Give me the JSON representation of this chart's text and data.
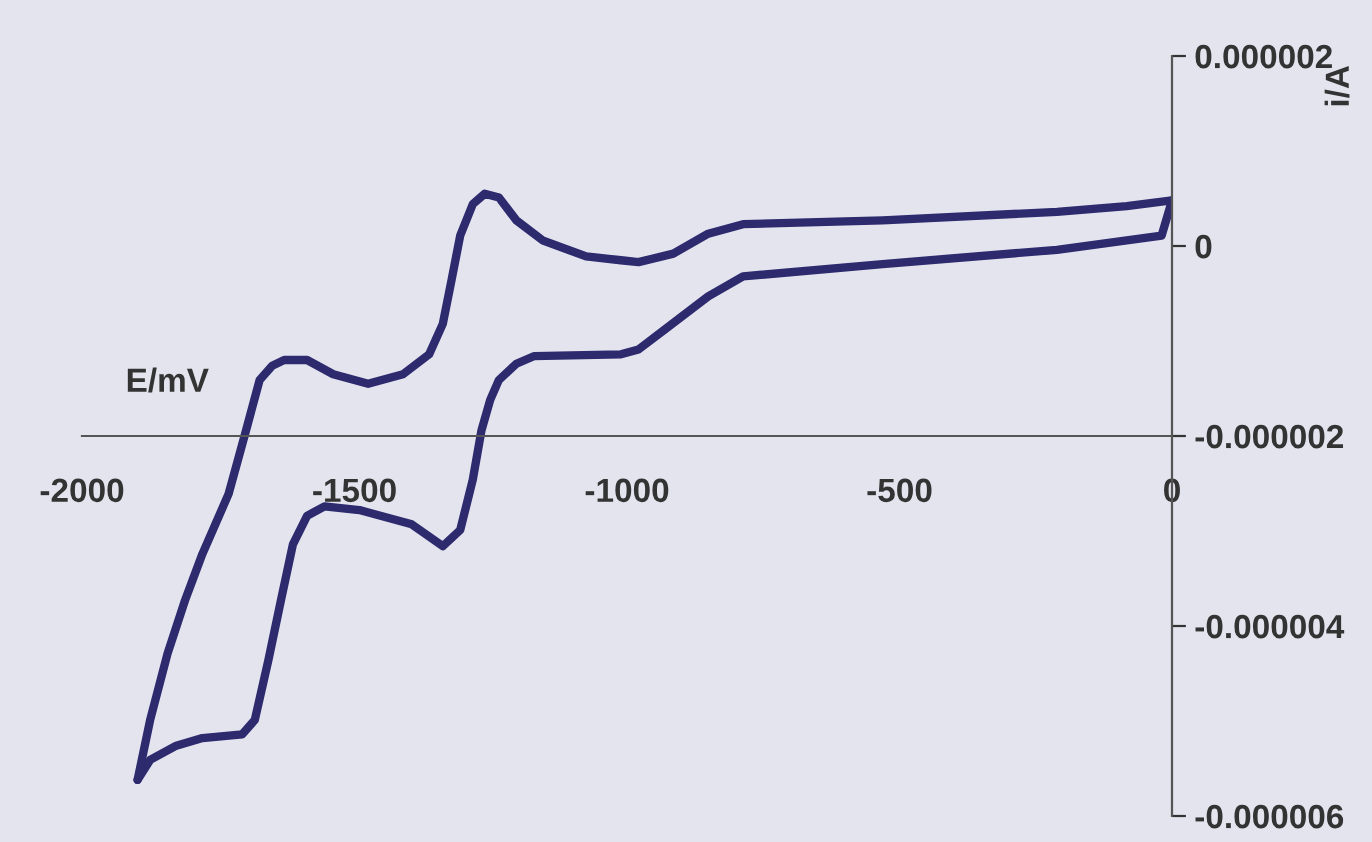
{
  "chart_data": {
    "type": "line",
    "xlabel": "E/mV",
    "ylabel": "i/A",
    "xlim": [
      -2000,
      0
    ],
    "xticks": [
      -2000,
      -1500,
      -1000,
      -500,
      0
    ],
    "ylim": [
      -6e-06,
      2e-06
    ],
    "yticks": [
      {
        "value": -6e-06,
        "label": "-0.000006"
      },
      {
        "value": -4e-06,
        "label": "-0.000004"
      },
      {
        "value": -2e-06,
        "label": "-0.000002"
      },
      {
        "value": 0,
        "label": "0"
      },
      {
        "value": 2e-06,
        "label": "0.000002"
      }
    ],
    "grid": false,
    "legend": false,
    "marker": "none",
    "line_style": "solid",
    "series": [
      {
        "color": "#2e2a6e",
        "x": [
          0,
          -19,
          -211,
          -531,
          -787,
          -851,
          -931,
          -979,
          -1011,
          -1171,
          -1203,
          -1235,
          -1251,
          -1267,
          -1283,
          -1306,
          -1338,
          -1395,
          -1491,
          -1555,
          -1587,
          -1613,
          -1635,
          -1658,
          -1683,
          -1706,
          -1779,
          -1827,
          -1875,
          -1898
        ],
        "values": [
          4.8e-07,
          1.1e-07,
          -4e-08,
          -1.9e-07,
          -3.2e-07,
          -5.3e-07,
          -8.8e-07,
          -1.09e-06,
          -1.14e-06,
          -1.16e-06,
          -1.24e-06,
          -1.41e-06,
          -1.62e-06,
          -1.94e-06,
          -2.46e-06,
          -2.99e-06,
          -3.16e-06,
          -2.93e-06,
          -2.78e-06,
          -2.74e-06,
          -2.84e-06,
          -3.14e-06,
          -3.73e-06,
          -4.36e-06,
          -4.99e-06,
          -5.14e-06,
          -5.18e-06,
          -5.26e-06,
          -5.41e-06,
          -5.62e-06
        ]
      },
      {
        "color": "#2e2a6e",
        "x": [
          -1898,
          -1875,
          -1843,
          -1811,
          -1779,
          -1731,
          -1699,
          -1674,
          -1651,
          -1629,
          -1587,
          -1539,
          -1475,
          -1411,
          -1363,
          -1338,
          -1322,
          -1306,
          -1283,
          -1261,
          -1235,
          -1203,
          -1155,
          -1075,
          -1011,
          -979,
          -915,
          -851,
          -787,
          -531,
          -211,
          -83,
          0
        ],
        "values": [
          -5.62e-06,
          -4.99e-06,
          -4.29e-06,
          -3.73e-06,
          -3.24e-06,
          -2.61e-06,
          -1.94e-06,
          -1.41e-06,
          -1.26e-06,
          -1.2e-06,
          -1.2e-06,
          -1.35e-06,
          -1.45e-06,
          -1.35e-06,
          -1.14e-06,
          -8.2e-07,
          -3.6e-07,
          1.1e-07,
          4.4e-07,
          5.5e-07,
          5.1e-07,
          2.7e-07,
          6e-08,
          -1.1e-07,
          -1.5e-07,
          -1.7e-07,
          -8e-08,
          1.3e-07,
          2.3e-07,
          2.7e-07,
          3.6e-07,
          4.2e-07,
          4.8e-07
        ]
      }
    ]
  }
}
